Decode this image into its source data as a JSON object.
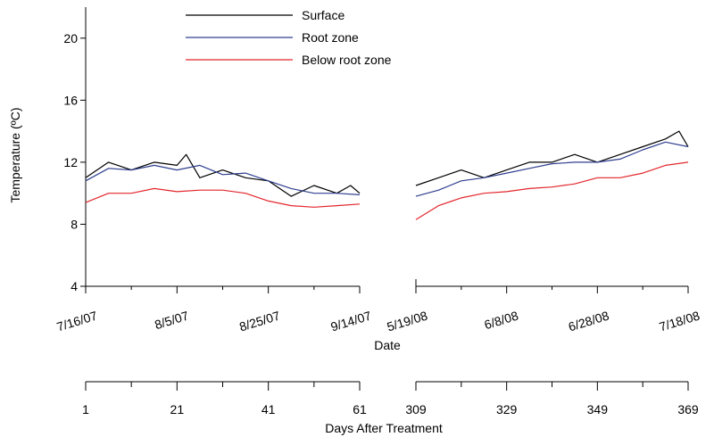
{
  "chart_data": {
    "type": "line",
    "ylabel": "Temperature (ºC)",
    "xlabel": "Date",
    "ylim": [
      4,
      22
    ],
    "yticks": [
      4,
      8,
      12,
      16,
      20
    ],
    "grid": false,
    "legend_position": "top-center",
    "panels": [
      {
        "xlim": [
          0,
          60
        ],
        "ticks": [
          {
            "x": 0,
            "date_label": "7/16/07",
            "day_label": "1"
          },
          {
            "x": 20,
            "date_label": "8/5/07",
            "day_label": "21"
          },
          {
            "x": 40,
            "date_label": "8/25/07",
            "day_label": "41"
          },
          {
            "x": 60,
            "date_label": "9/14/07",
            "day_label": "61"
          }
        ],
        "minor_ticks": [
          10,
          30,
          50
        ]
      },
      {
        "xlim": [
          0,
          60
        ],
        "ticks": [
          {
            "x": 0,
            "date_label": "5/19/08",
            "day_label": "309"
          },
          {
            "x": 20,
            "date_label": "6/8/08",
            "day_label": "329"
          },
          {
            "x": 40,
            "date_label": "6/28/08",
            "day_label": "349"
          },
          {
            "x": 60,
            "date_label": "7/18/08",
            "day_label": "369"
          }
        ],
        "minor_ticks": [
          10,
          30,
          50
        ]
      }
    ],
    "secondary_axis_label": "Days After Treatment",
    "series": [
      {
        "name": "Surface",
        "color": "#000000",
        "segments": [
          {
            "panel": 0,
            "x": [
              0,
              5,
              10,
              15,
              20,
              22,
              25,
              30,
              35,
              40,
              45,
              50,
              55,
              58,
              60
            ],
            "y": [
              11.0,
              12.0,
              11.5,
              12.0,
              11.8,
              12.5,
              11.0,
              11.5,
              11.0,
              10.8,
              9.8,
              10.5,
              10.0,
              10.5,
              10.0
            ]
          },
          {
            "panel": 1,
            "x": [
              0,
              5,
              10,
              15,
              20,
              25,
              30,
              35,
              40,
              45,
              50,
              55,
              58,
              60
            ],
            "y": [
              10.5,
              11.0,
              11.5,
              11.0,
              11.5,
              12.0,
              12.0,
              12.5,
              12.0,
              12.5,
              13.0,
              13.5,
              14.0,
              13.0
            ]
          }
        ]
      },
      {
        "name": "Root zone",
        "color": "#2e3f8f",
        "segments": [
          {
            "panel": 0,
            "x": [
              0,
              5,
              10,
              15,
              20,
              25,
              30,
              35,
              40,
              45,
              50,
              55,
              60
            ],
            "y": [
              10.8,
              11.6,
              11.5,
              11.8,
              11.5,
              11.8,
              11.2,
              11.3,
              10.8,
              10.3,
              10.0,
              10.0,
              9.9
            ]
          },
          {
            "panel": 1,
            "x": [
              0,
              5,
              10,
              15,
              20,
              25,
              30,
              35,
              40,
              45,
              50,
              55,
              60
            ],
            "y": [
              9.8,
              10.2,
              10.8,
              11.0,
              11.3,
              11.6,
              11.9,
              12.0,
              12.0,
              12.2,
              12.8,
              13.3,
              13.0
            ]
          }
        ]
      },
      {
        "name": "Below root zone",
        "color": "#e3262b",
        "segments": [
          {
            "panel": 0,
            "x": [
              0,
              5,
              10,
              15,
              20,
              25,
              30,
              35,
              40,
              45,
              50,
              55,
              60
            ],
            "y": [
              9.4,
              10.0,
              10.0,
              10.3,
              10.1,
              10.2,
              10.2,
              10.0,
              9.5,
              9.2,
              9.1,
              9.2,
              9.3
            ]
          },
          {
            "panel": 1,
            "x": [
              0,
              5,
              10,
              15,
              20,
              25,
              30,
              35,
              40,
              45,
              50,
              55,
              60
            ],
            "y": [
              8.3,
              9.2,
              9.7,
              10.0,
              10.1,
              10.3,
              10.4,
              10.6,
              11.0,
              11.0,
              11.3,
              11.8,
              12.0
            ]
          }
        ]
      }
    ]
  }
}
